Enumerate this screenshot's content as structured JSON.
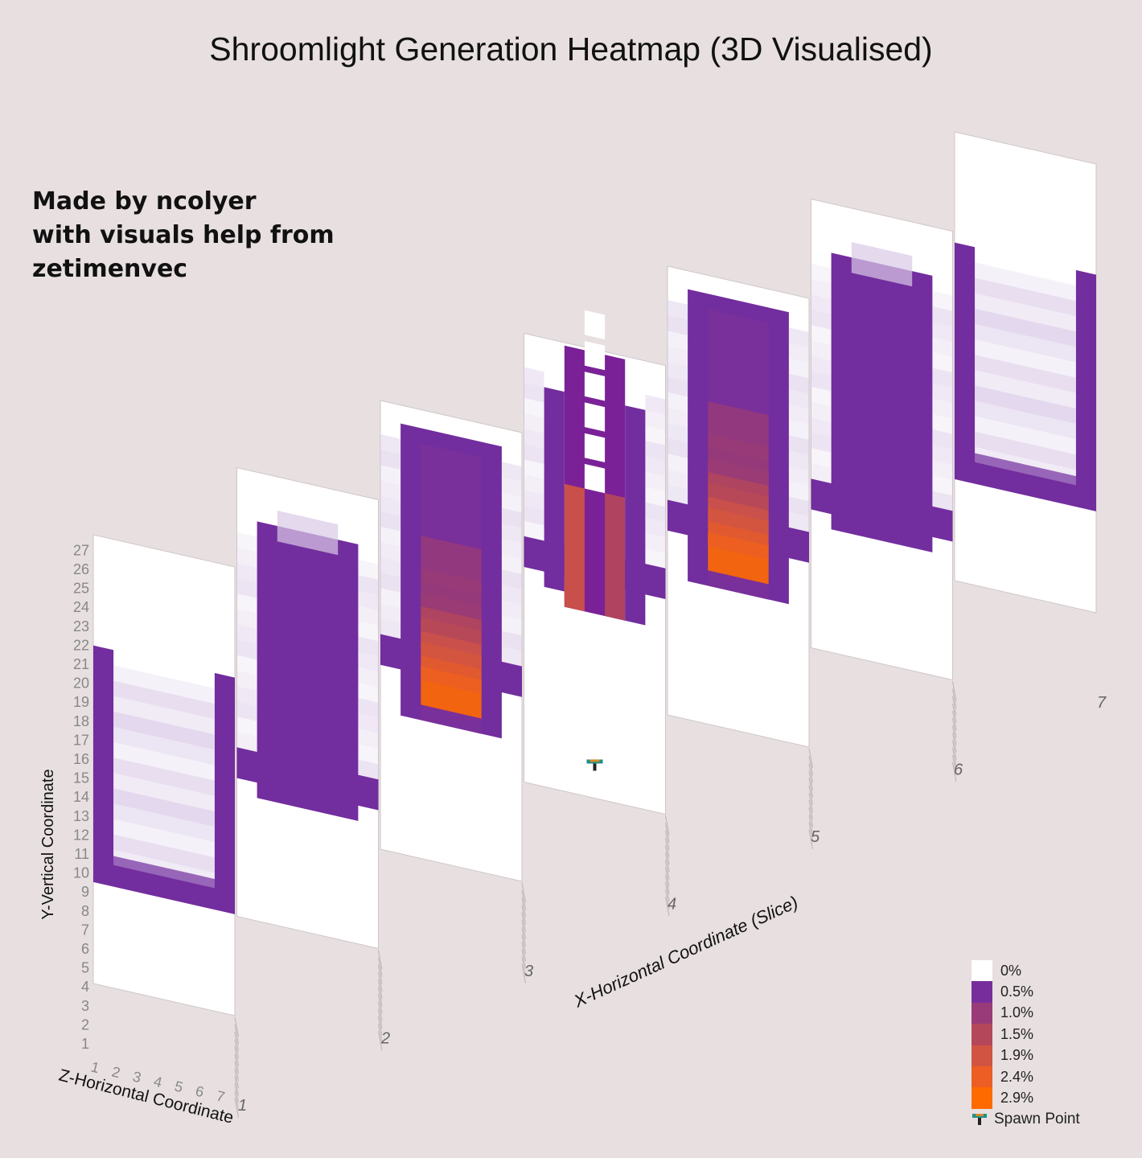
{
  "chart_data": {
    "type": "heatmap",
    "title": "Shroomlight Generation Heatmap (3D Visualised)",
    "xlabel": "X-Horizontal Coordinate (Slice)",
    "ylabel": "Y-Vertical Coordinate",
    "zlabel": "Z-Horizontal Coordinate",
    "x_ticks": [
      "1",
      "2",
      "3",
      "4",
      "5",
      "6",
      "7"
    ],
    "y_ticks": [
      "1",
      "2",
      "3",
      "4",
      "5",
      "6",
      "7",
      "8",
      "9",
      "10",
      "11",
      "12",
      "13",
      "14",
      "15",
      "16",
      "17",
      "18",
      "19",
      "20",
      "21",
      "22",
      "23",
      "24",
      "25",
      "26",
      "27"
    ],
    "z_ticks": [
      "1",
      "2",
      "3",
      "4",
      "5",
      "6",
      "7"
    ],
    "color_scale": [
      {
        "label": "0%",
        "value": 0,
        "color": "#ffffff"
      },
      {
        "label": "0.5%",
        "value": 0.5,
        "color": "#772e9c"
      },
      {
        "label": "1.0%",
        "value": 1.0,
        "color": "#983b78"
      },
      {
        "label": "1.5%",
        "value": 1.5,
        "color": "#b5475a"
      },
      {
        "label": "1.9%",
        "value": 1.9,
        "color": "#d15442"
      },
      {
        "label": "2.4%",
        "value": 2.4,
        "color": "#ec5e24"
      },
      {
        "label": "2.9%",
        "value": 2.9,
        "color": "#ff6a00"
      }
    ],
    "spawn_label": "Spawn Point",
    "spawn_point": {
      "x": 4,
      "y": 1,
      "z": 4
    },
    "slices": [
      {
        "x": 1,
        "rows": [
          {
            "y": 7,
            "z_min": 1,
            "z_max": 7,
            "v": 0.5
          },
          {
            "y": 21,
            "z_min": 1,
            "z_max": 1,
            "v": 0.5
          },
          {
            "y": 8,
            "z_min": 1,
            "z_max": 1,
            "v": 0.5
          },
          {
            "y": 9,
            "z_min": 1,
            "z_max": 1,
            "v": 0.5
          }
        ]
      },
      {
        "x": 2,
        "rows": []
      },
      {
        "x": 3,
        "rows": []
      },
      {
        "x": 4,
        "rows": []
      },
      {
        "x": 5,
        "rows": []
      },
      {
        "x": 6,
        "rows": []
      },
      {
        "x": 7,
        "rows": []
      }
    ]
  },
  "credits": [
    "Made by ncolyer",
    "with visuals help from",
    "zetimenvec"
  ],
  "colors": {
    "background": "#e7dfe0",
    "panel": "#ffffff",
    "purple": "#722d9e",
    "purple_dark": "#6e2aa0",
    "faint": "#d9c9e6",
    "hot": "#ff6a00"
  }
}
